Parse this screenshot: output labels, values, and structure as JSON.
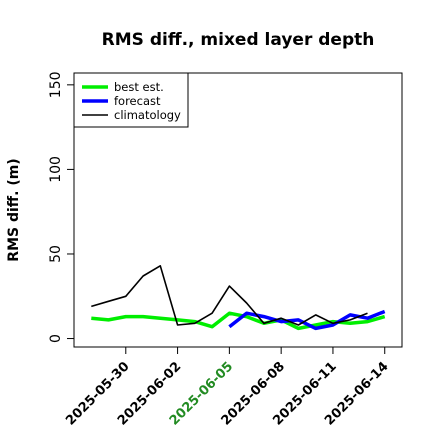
{
  "chart_data": {
    "type": "line",
    "title": "RMS diff., mixed layer depth",
    "ylabel": "RMS diff. (m)",
    "xlabel": "",
    "ylim": [
      -5,
      157
    ],
    "yticks": [
      0,
      50,
      100,
      150
    ],
    "x_dates": [
      "2025-05-28",
      "2025-05-29",
      "2025-05-30",
      "2025-05-31",
      "2025-06-01",
      "2025-06-02",
      "2025-06-03",
      "2025-06-04",
      "2025-06-05",
      "2025-06-06",
      "2025-06-07",
      "2025-06-08",
      "2025-06-09",
      "2025-06-10",
      "2025-06-11",
      "2025-06-12",
      "2025-06-13",
      "2025-06-14"
    ],
    "xlim": [
      "2025-05-27",
      "2025-06-15"
    ],
    "xticks": [
      {
        "label": "2025-05-30",
        "date": "2025-05-30",
        "color": "#000000"
      },
      {
        "label": "2025-06-02",
        "date": "2025-06-02",
        "color": "#000000"
      },
      {
        "label": "2025-06-05",
        "date": "2025-06-05",
        "color": "#228B22"
      },
      {
        "label": "2025-06-08",
        "date": "2025-06-08",
        "color": "#000000"
      },
      {
        "label": "2025-06-11",
        "date": "2025-06-11",
        "color": "#000000"
      },
      {
        "label": "2025-06-14",
        "date": "2025-06-14",
        "color": "#000000"
      }
    ],
    "legend_position": "top-left",
    "series": [
      {
        "name": "best est.",
        "color": "#00ee00",
        "values": [
          12,
          11,
          13,
          13,
          12,
          11,
          10,
          7,
          15,
          13,
          9,
          11,
          6,
          8,
          10,
          9,
          10,
          13
        ]
      },
      {
        "name": "forecast",
        "color": "#0000ff",
        "start_index": 8,
        "values": [
          7,
          15,
          13,
          10,
          11,
          6,
          8,
          14,
          12,
          16
        ]
      },
      {
        "name": "climatology",
        "color": "#000000",
        "values": [
          19,
          22,
          25,
          37,
          43,
          8,
          9,
          15,
          31,
          21,
          9,
          12,
          8,
          14,
          9,
          11,
          15
        ]
      }
    ]
  }
}
